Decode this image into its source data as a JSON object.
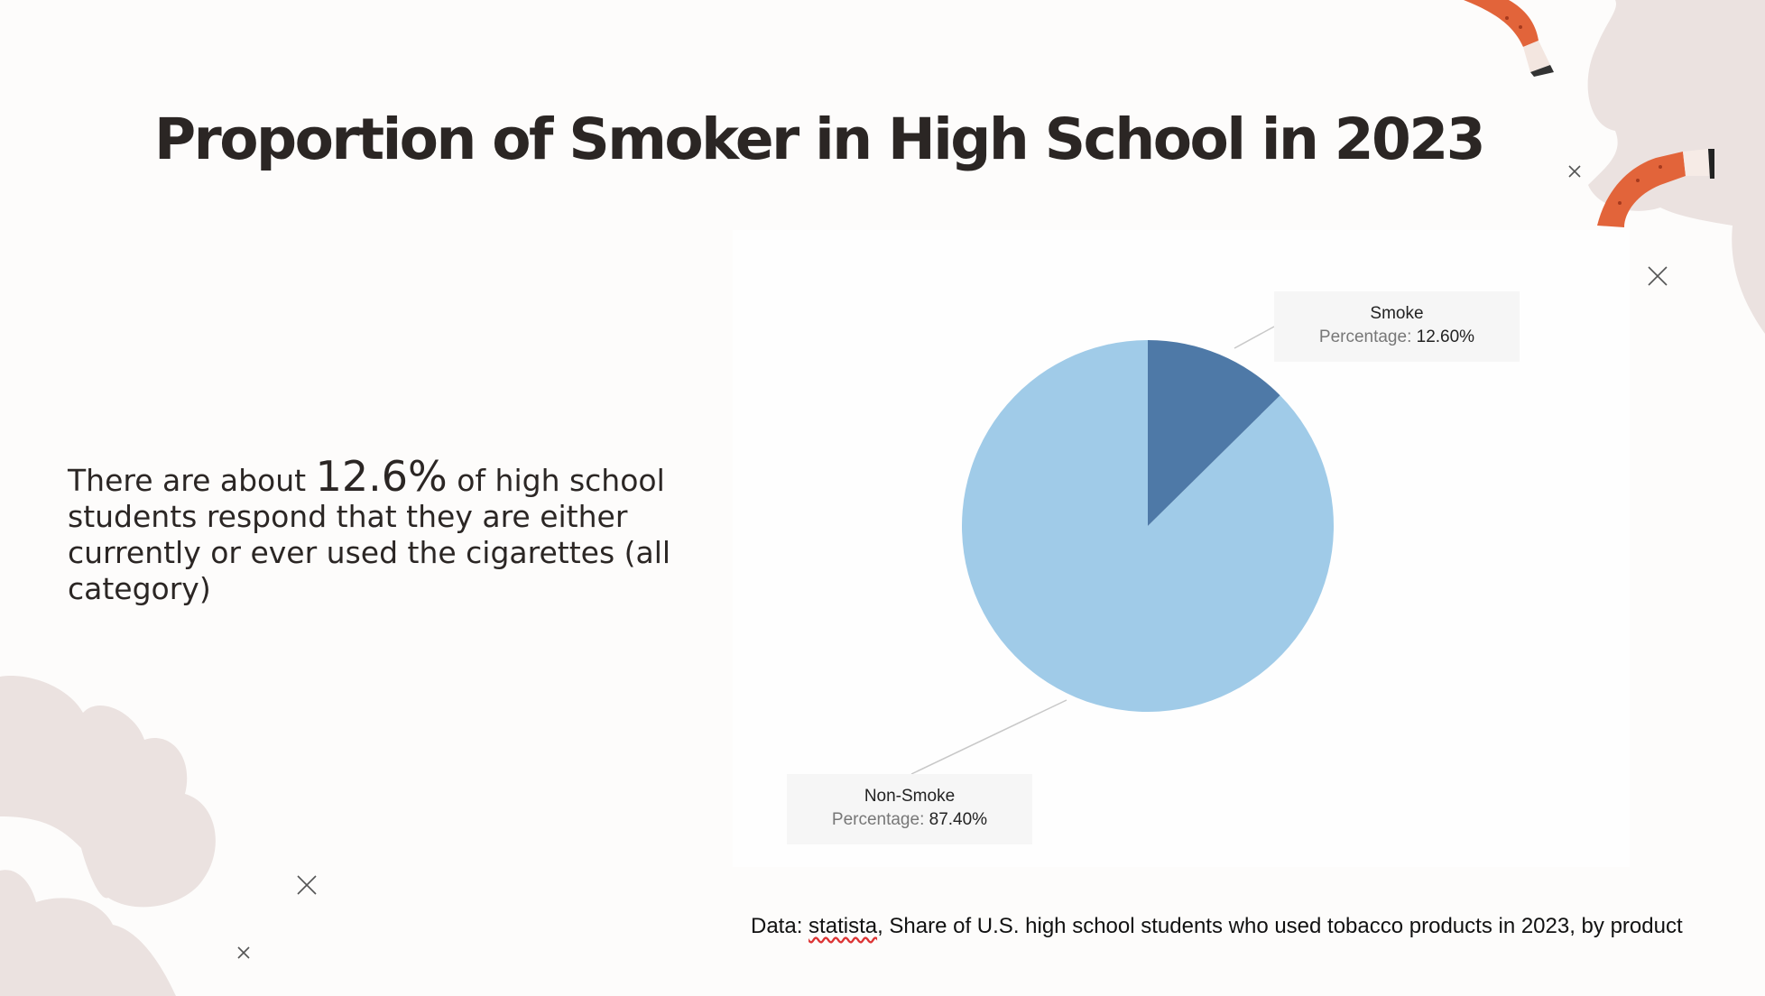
{
  "slide": {
    "title": "Proportion of Smoker in High School in 2023",
    "description": {
      "before": "There are about",
      "highlight": "12.6%",
      "after": "of high school students respond that they are either currently or ever used the cigarettes (all category)"
    },
    "source": {
      "prefix": "Data:",
      "site": "statista",
      "text": ", Share of U.S. high school students who used tobacco products in 2023, by product"
    }
  },
  "chart_data": {
    "type": "pie",
    "title": "",
    "slices": [
      {
        "label": "Smoke",
        "value": 12.6,
        "display": "12.60%",
        "color": "#4e79a7"
      },
      {
        "label": "Non-Smoke",
        "value": 87.4,
        "display": "87.40%",
        "color": "#a0cbe8"
      }
    ],
    "tooltip_key": "Percentage:"
  },
  "colors": {
    "background": "#fdfcfb",
    "smoke_cloud": "#ebe2e0",
    "cigarette": "#e2643a"
  }
}
